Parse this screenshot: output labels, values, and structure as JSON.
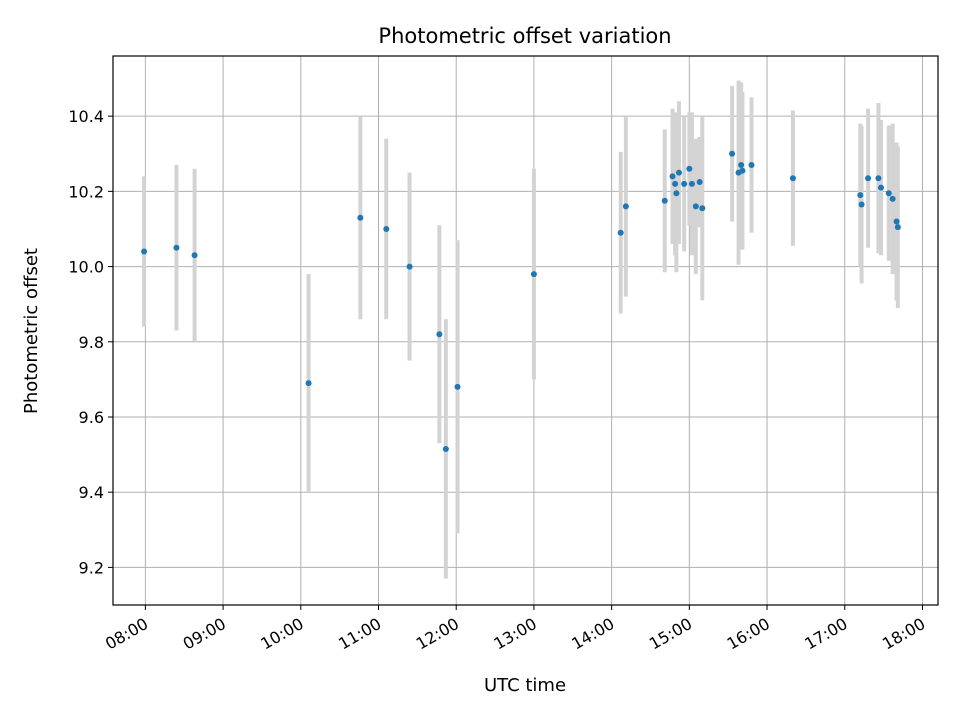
{
  "chart_data": {
    "type": "scatter",
    "title": "Photometric offset variation",
    "xlabel": "UTC time",
    "ylabel": "Photometric offset",
    "grid": true,
    "xlim": [
      "07:35",
      "18:12"
    ],
    "ylim": [
      9.1,
      10.56
    ],
    "x_ticks": [
      "08:00",
      "09:00",
      "10:00",
      "11:00",
      "12:00",
      "13:00",
      "14:00",
      "15:00",
      "16:00",
      "17:00",
      "18:00"
    ],
    "y_ticks": [
      "9.2",
      "9.4",
      "9.6",
      "9.8",
      "10.0",
      "10.2",
      "10.4"
    ],
    "colors": {
      "point": "#1f77b4",
      "error_bar": "#d3d3d3",
      "grid": "#b0b0b0"
    },
    "points": [
      {
        "x": "07:59",
        "y": 10.04,
        "err": 0.2
      },
      {
        "x": "08:24",
        "y": 10.05,
        "err": 0.22
      },
      {
        "x": "08:38",
        "y": 10.03,
        "err": 0.23
      },
      {
        "x": "10:06",
        "y": 9.69,
        "err": 0.29
      },
      {
        "x": "10:46",
        "y": 10.13,
        "err": 0.27
      },
      {
        "x": "11:06",
        "y": 10.1,
        "err": 0.24
      },
      {
        "x": "11:24",
        "y": 10.0,
        "err": 0.25
      },
      {
        "x": "11:47",
        "y": 9.82,
        "err": 0.29
      },
      {
        "x": "11:52",
        "y": 9.515,
        "err": 0.345
      },
      {
        "x": "12:01",
        "y": 9.68,
        "err": 0.39
      },
      {
        "x": "13:00",
        "y": 9.98,
        "err": 0.28
      },
      {
        "x": "14:07",
        "y": 10.09,
        "err": 0.215
      },
      {
        "x": "14:11",
        "y": 10.16,
        "err": 0.24
      },
      {
        "x": "14:41",
        "y": 10.175,
        "err": 0.19
      },
      {
        "x": "14:47",
        "y": 10.24,
        "err": 0.18
      },
      {
        "x": "14:49",
        "y": 10.22,
        "err": 0.19
      },
      {
        "x": "14:50",
        "y": 10.195,
        "err": 0.21
      },
      {
        "x": "14:52",
        "y": 10.25,
        "err": 0.19
      },
      {
        "x": "14:56",
        "y": 10.22,
        "err": 0.18
      },
      {
        "x": "15:00",
        "y": 10.26,
        "err": 0.15
      },
      {
        "x": "15:02",
        "y": 10.22,
        "err": 0.19
      },
      {
        "x": "15:05",
        "y": 10.16,
        "err": 0.18
      },
      {
        "x": "15:08",
        "y": 10.225,
        "err": 0.12
      },
      {
        "x": "15:10",
        "y": 10.155,
        "err": 0.245
      },
      {
        "x": "15:33",
        "y": 10.3,
        "err": 0.18
      },
      {
        "x": "15:38",
        "y": 10.25,
        "err": 0.245
      },
      {
        "x": "15:40",
        "y": 10.27,
        "err": 0.22
      },
      {
        "x": "15:41",
        "y": 10.255,
        "err": 0.21
      },
      {
        "x": "15:48",
        "y": 10.27,
        "err": 0.18
      },
      {
        "x": "16:20",
        "y": 10.235,
        "err": 0.18
      },
      {
        "x": "17:12",
        "y": 10.19,
        "err": 0.19
      },
      {
        "x": "17:13",
        "y": 10.165,
        "err": 0.21
      },
      {
        "x": "17:18",
        "y": 10.235,
        "err": 0.185
      },
      {
        "x": "17:26",
        "y": 10.235,
        "err": 0.2
      },
      {
        "x": "17:28",
        "y": 10.21,
        "err": 0.18
      },
      {
        "x": "17:34",
        "y": 10.195,
        "err": 0.18
      },
      {
        "x": "17:37",
        "y": 10.18,
        "err": 0.2
      },
      {
        "x": "17:40",
        "y": 10.12,
        "err": 0.21
      },
      {
        "x": "17:41",
        "y": 10.105,
        "err": 0.215
      }
    ]
  }
}
